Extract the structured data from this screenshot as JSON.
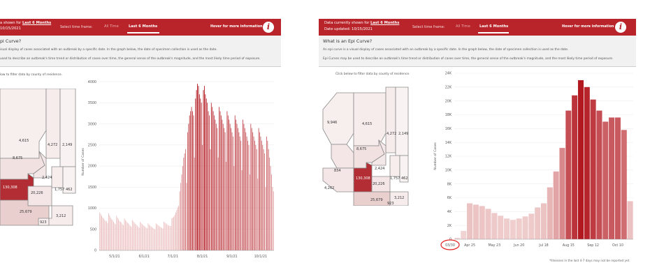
{
  "left": {
    "header": {
      "data_currently": "a shown for ",
      "period_link": "Last 6 Months",
      "date_updated": "10/15/2021",
      "time_frame_label": "Select time frame:",
      "all_time": "All Time",
      "last_6_months": "Last 6 Months",
      "hover": "Hover for more information",
      "info_glyph": "i"
    },
    "question": "pi Curve?",
    "para1": "isual display of cases associated with an outbreak by a specific date. In the graph below, the date of specimen collection is used as the date.",
    "para2": "used to describe an outbreak's time trend or distribution of cases over time, the general sense of the outbreak's magnitude, and the most likely time period of exposure.",
    "click_text": "low to filter data by county of residence.",
    "counties": [
      "4,615",
      "4,272",
      "2,149",
      "8,675",
      "2,424",
      "1,757",
      "462",
      "130,308",
      "20,226",
      "25,679",
      "923",
      "3,212"
    ],
    "chart_data": {
      "type": "bar",
      "ylabel": "Number of Cases",
      "yticks": [
        "0",
        "500",
        "1000",
        "1500",
        "2000",
        "2500",
        "3000",
        "3500",
        "4000"
      ],
      "ylim": [
        0,
        4200
      ],
      "xticks": [
        "5/1/21",
        "6/1/21",
        "7/1/21",
        "8/1/21",
        "9/1/21",
        "10/1/21"
      ],
      "x_range": [
        "2021-04-15",
        "2021-10-15"
      ],
      "daily_values": [
        900,
        860,
        820,
        780,
        760,
        720,
        690,
        700,
        650,
        880,
        830,
        780,
        740,
        720,
        680,
        640,
        620,
        820,
        780,
        740,
        700,
        680,
        660,
        620,
        600,
        760,
        720,
        690,
        660,
        640,
        610,
        580,
        560,
        720,
        690,
        660,
        630,
        610,
        590,
        560,
        540,
        680,
        650,
        620,
        600,
        580,
        560,
        540,
        520,
        640,
        610,
        590,
        570,
        550,
        530,
        510,
        500,
        640,
        620,
        600,
        580,
        560,
        550,
        530,
        520,
        680,
        660,
        640,
        620,
        600,
        590,
        580,
        580,
        760,
        780,
        800,
        840,
        900,
        960,
        1020,
        1060,
        1400,
        1600,
        1800,
        2000,
        2200,
        2300,
        2400,
        1600,
        2800,
        3000,
        3200,
        3300,
        3400,
        3300,
        3200,
        2200,
        3600,
        3800,
        3950,
        3900,
        3700,
        3600,
        3500,
        2500,
        3800,
        3900,
        3700,
        3600,
        3500,
        3300,
        3200,
        2400,
        3500,
        3400,
        3300,
        3200,
        3100,
        3000,
        2900,
        2200,
        3400,
        3300,
        3200,
        3100,
        3000,
        2900,
        2800,
        2100,
        3300,
        3200,
        3100,
        3000,
        2900,
        2800,
        2700,
        2000,
        3200,
        3100,
        3000,
        2900,
        2800,
        2700,
        2600,
        1900,
        3100,
        3000,
        2900,
        2800,
        2700,
        2600,
        2500,
        1800,
        3000,
        2900,
        2800,
        2700,
        2600,
        2500,
        2400,
        1700,
        2900,
        2800,
        2700,
        2600,
        2500,
        2400,
        2300,
        1500,
        2700,
        2600,
        2400,
        2200,
        2000,
        1800,
        1500,
        1400
      ]
    }
  },
  "right": {
    "header": {
      "data_currently": "Data currently shown for ",
      "period_link": "Last 6 Months",
      "date_updated": "Date updated: 10/15/2021",
      "time_frame_label": "Select time frame:",
      "all_time": "All Time",
      "last_6_months": "Last 6 Months",
      "hover": "Hover for more information",
      "info_glyph": "i"
    },
    "question": "What is an Epi Curve?",
    "para1": "An epi curve is a visual display of cases associated with an outbreak by a specific date. In the graph below, the date of specimen collection is used as the date.",
    "para2": "Epi Curves may be used to describe an outbreak's time trend or distribution of cases over time, the general sense of the outbreak's magnitude, and the most likely time period of exposure.",
    "click_text": "Click below to filter data by county of residence.",
    "counties": [
      "9,946",
      "4,615",
      "4,272",
      "2,149",
      "8,675",
      "2,424",
      "834",
      "130,308",
      "1,757",
      "462",
      "4,262",
      "20,226",
      "25,679",
      "923",
      "3,212"
    ],
    "footnote": "*Illnesses in the last 4-7 days may not be reported yet",
    "chart_data": {
      "type": "bar",
      "ylabel": "Number of Cases",
      "yticks": [
        "0",
        "2K",
        "4K",
        "6K",
        "8K",
        "10K",
        "12K",
        "14K",
        "16K",
        "18K",
        "20K",
        "22K",
        "24K"
      ],
      "ylim": [
        0,
        24000
      ],
      "xticks": [
        "Apr 25",
        "May 23",
        "Jun 20",
        "Jul 18",
        "Aug 15",
        "Sep 12",
        "Oct 10"
      ],
      "first_tick": "03/30",
      "values": [
        200,
        1200,
        5200,
        5000,
        4800,
        4400,
        3800,
        3400,
        3000,
        2800,
        3000,
        3300,
        3700,
        4600,
        5200,
        7500,
        9800,
        13200,
        18600,
        20800,
        23000,
        22000,
        20200,
        18600,
        17000,
        17600,
        17600,
        15800,
        5500
      ]
    }
  }
}
